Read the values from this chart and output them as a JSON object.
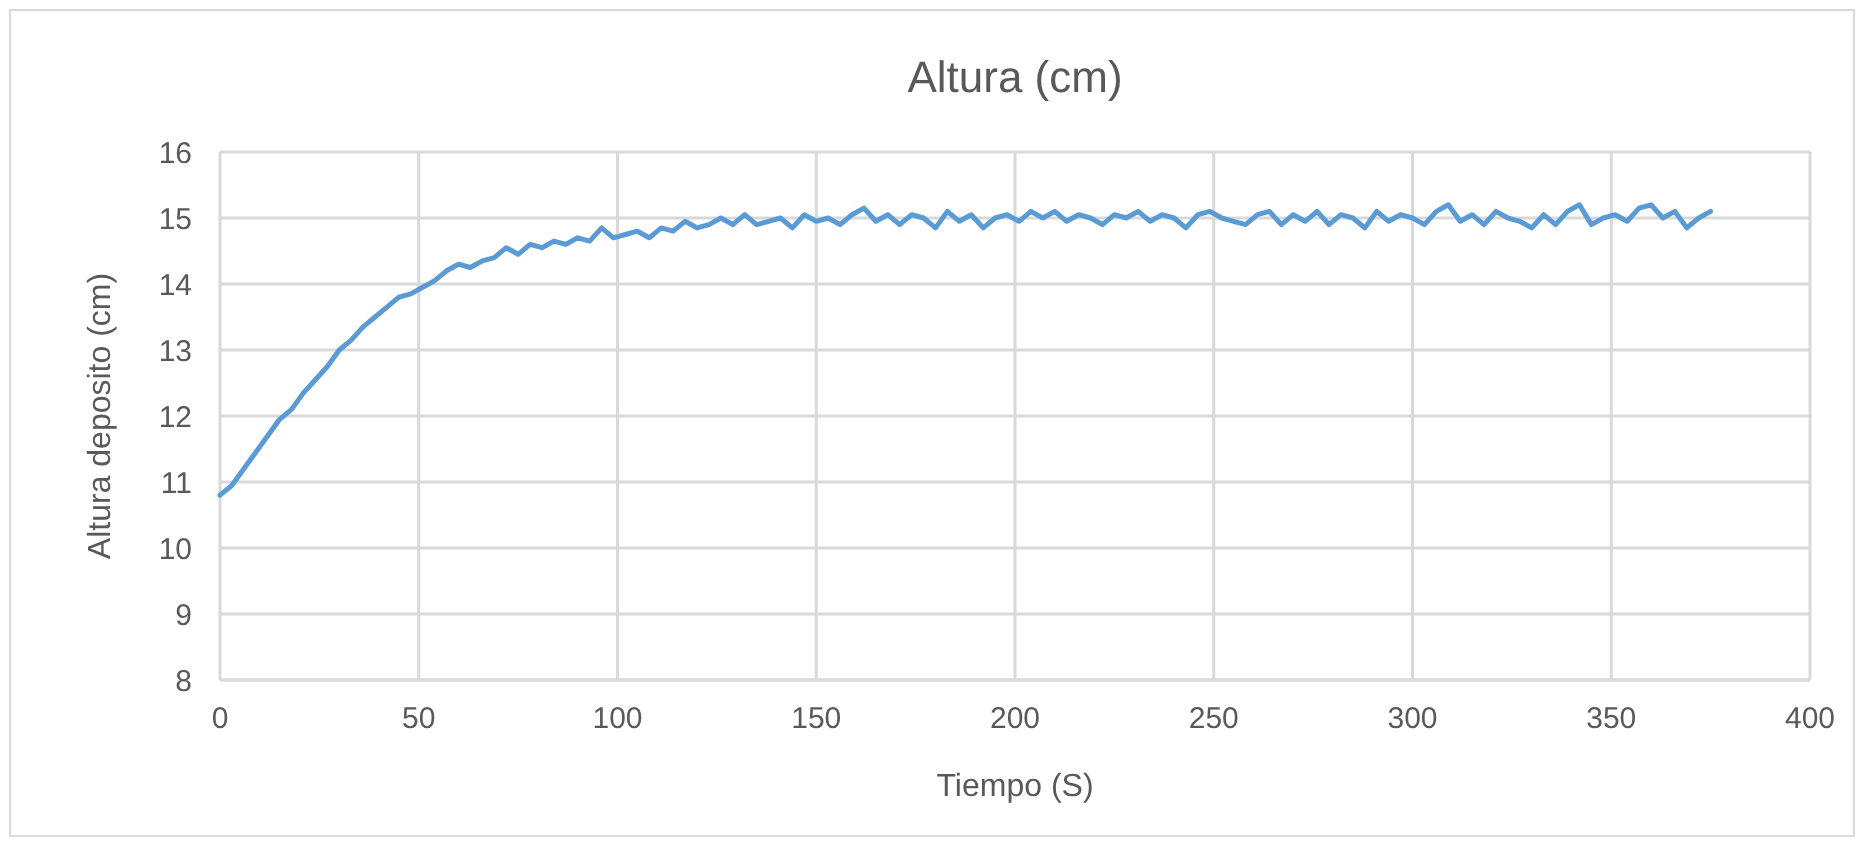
{
  "chart_data": {
    "type": "line",
    "title": "Altura (cm)",
    "xlabel": "Tiempo (S)",
    "ylabel": "Altura deposito (cm)",
    "xlim": [
      0,
      400
    ],
    "xticks": [
      0,
      50,
      100,
      150,
      200,
      250,
      300,
      350,
      400
    ],
    "ylim": [
      8,
      16
    ],
    "yticks": [
      8,
      9,
      10,
      11,
      12,
      13,
      14,
      15,
      16
    ],
    "grid": true,
    "series": [
      {
        "color": "#5b9bd5",
        "x": [
          0,
          3,
          6,
          9,
          12,
          15,
          18,
          21,
          24,
          27,
          30,
          33,
          36,
          39,
          42,
          45,
          48,
          51,
          54,
          57,
          60,
          63,
          66,
          69,
          72,
          75,
          78,
          81,
          84,
          87,
          90,
          93,
          96,
          99,
          102,
          105,
          108,
          111,
          114,
          117,
          120,
          123,
          126,
          129,
          132,
          135,
          138,
          141,
          144,
          147,
          150,
          153,
          156,
          159,
          162,
          165,
          168,
          171,
          174,
          177,
          180,
          183,
          186,
          189,
          192,
          195,
          198,
          201,
          204,
          207,
          210,
          213,
          216,
          219,
          222,
          225,
          228,
          231,
          234,
          237,
          240,
          243,
          246,
          249,
          252,
          255,
          258,
          261,
          264,
          267,
          270,
          273,
          276,
          279,
          282,
          285,
          288,
          291,
          294,
          297,
          300,
          303,
          306,
          309,
          312,
          315,
          318,
          321,
          324,
          327,
          330,
          333,
          336,
          339,
          342,
          345,
          348,
          351,
          354,
          357,
          360,
          363,
          366,
          369,
          372,
          375
        ],
        "values": [
          10.8,
          10.95,
          11.2,
          11.45,
          11.7,
          11.95,
          12.1,
          12.35,
          12.55,
          12.75,
          13.0,
          13.15,
          13.35,
          13.5,
          13.65,
          13.8,
          13.85,
          13.95,
          14.05,
          14.2,
          14.3,
          14.25,
          14.35,
          14.4,
          14.55,
          14.45,
          14.6,
          14.55,
          14.65,
          14.6,
          14.7,
          14.65,
          14.85,
          14.7,
          14.75,
          14.8,
          14.7,
          14.85,
          14.8,
          14.95,
          14.85,
          14.9,
          15.0,
          14.9,
          15.05,
          14.9,
          14.95,
          15.0,
          14.85,
          15.05,
          14.95,
          15.0,
          14.9,
          15.05,
          15.15,
          14.95,
          15.05,
          14.9,
          15.05,
          15.0,
          14.85,
          15.1,
          14.95,
          15.05,
          14.85,
          15.0,
          15.05,
          14.95,
          15.1,
          15.0,
          15.1,
          14.95,
          15.05,
          15.0,
          14.9,
          15.05,
          15.0,
          15.1,
          14.95,
          15.05,
          15.0,
          14.85,
          15.05,
          15.1,
          15.0,
          14.95,
          14.9,
          15.05,
          15.1,
          14.9,
          15.05,
          14.95,
          15.1,
          14.9,
          15.05,
          15.0,
          14.85,
          15.1,
          14.95,
          15.05,
          15.0,
          14.9,
          15.1,
          15.2,
          14.95,
          15.05,
          14.9,
          15.1,
          15.0,
          14.95,
          14.85,
          15.05,
          14.9,
          15.1,
          15.2,
          14.9,
          15.0,
          15.05,
          14.95,
          15.15,
          15.2,
          15.0,
          15.1,
          14.85,
          15.0,
          15.1
        ]
      }
    ]
  }
}
